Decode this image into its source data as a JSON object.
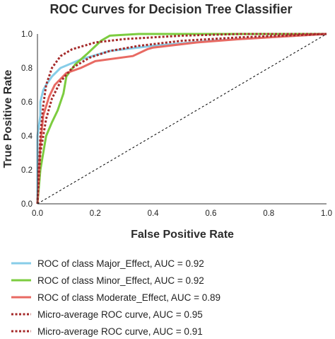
{
  "chart_data": {
    "type": "line",
    "title": "ROC Curves for Decision Tree Classifier",
    "xlabel": "False Positive Rate",
    "ylabel": "True Positive Rate",
    "xlim": [
      0,
      1
    ],
    "ylim": [
      0,
      1
    ],
    "xticks": [
      "0.0",
      "0.2",
      "0.4",
      "0.6",
      "0.8",
      "1.0"
    ],
    "yticks": [
      "0.0",
      "0.2",
      "0.4",
      "0.6",
      "0.8",
      "1.0"
    ],
    "grid": false,
    "legend_position": "bottom",
    "series": [
      {
        "name": "ROC of class Major_Effect, AUC = 0.92",
        "color": "#87cde8",
        "style": "solid",
        "x": [
          0,
          0,
          0.01,
          0.01,
          0.02,
          0.03,
          0.05,
          0.08,
          0.15,
          0.25,
          0.4,
          0.6,
          0.8,
          1.0
        ],
        "y": [
          0,
          0.4,
          0.52,
          0.6,
          0.67,
          0.7,
          0.75,
          0.8,
          0.85,
          0.9,
          0.93,
          0.96,
          0.98,
          1.0
        ]
      },
      {
        "name": "ROC of class Minor_Effect, AUC = 0.92",
        "color": "#7ccc3f",
        "style": "solid",
        "x": [
          0,
          0.01,
          0.03,
          0.05,
          0.07,
          0.09,
          0.1,
          0.13,
          0.17,
          0.22,
          0.25,
          0.35,
          0.5,
          0.7,
          1.0
        ],
        "y": [
          0,
          0.2,
          0.4,
          0.48,
          0.55,
          0.65,
          0.75,
          0.82,
          0.88,
          0.96,
          0.99,
          1.0,
          1.0,
          1.0,
          1.0
        ]
      },
      {
        "name": "ROC of class Moderate_Effect, AUC = 0.89",
        "color": "#e86a63",
        "style": "solid",
        "x": [
          0,
          0.01,
          0.02,
          0.04,
          0.06,
          0.1,
          0.15,
          0.2,
          0.33,
          0.38,
          0.4,
          0.55,
          0.7,
          1.0
        ],
        "y": [
          0,
          0.35,
          0.52,
          0.63,
          0.7,
          0.77,
          0.8,
          0.84,
          0.87,
          0.91,
          0.92,
          0.95,
          0.97,
          1.0
        ]
      },
      {
        "name": "Micro-average ROC curve, AUC = 0.95",
        "color": "#a52a2a",
        "style": "dotted",
        "x": [
          0,
          0.01,
          0.02,
          0.03,
          0.05,
          0.08,
          0.12,
          0.2,
          0.3,
          0.5,
          0.7,
          1.0
        ],
        "y": [
          0,
          0.4,
          0.58,
          0.7,
          0.8,
          0.87,
          0.91,
          0.95,
          0.97,
          0.99,
          1.0,
          1.0
        ]
      },
      {
        "name": "Micro-average ROC curve, AUC = 0.91",
        "color": "#a52a2a",
        "style": "dotted",
        "x": [
          0,
          0.01,
          0.03,
          0.05,
          0.08,
          0.12,
          0.18,
          0.25,
          0.35,
          0.5,
          0.7,
          1.0
        ],
        "y": [
          0,
          0.3,
          0.5,
          0.62,
          0.72,
          0.8,
          0.86,
          0.9,
          0.93,
          0.96,
          0.98,
          1.0
        ]
      },
      {
        "name": "",
        "color": "#000000",
        "style": "dashed",
        "x": [
          0,
          1
        ],
        "y": [
          0,
          1
        ]
      }
    ]
  }
}
